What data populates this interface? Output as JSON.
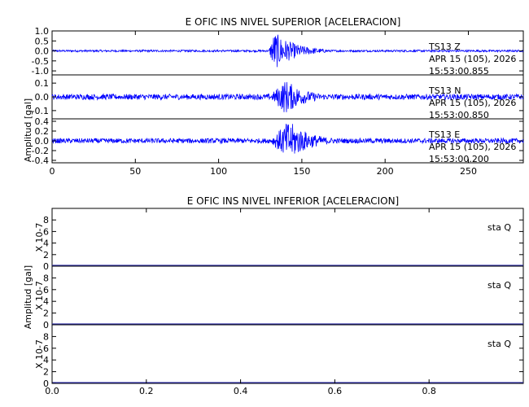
{
  "colors": {
    "trace": "#0000ff",
    "zero_trace": "#3333aa",
    "axis": "#000000",
    "background": "#ffffff"
  },
  "top": {
    "title": "E OFIC INS NIVEL SUPERIOR [ACELERACION]",
    "ylabel": "Amplitud [gal]",
    "x_ticks": [
      "0",
      "50",
      "100",
      "150",
      "200",
      "250"
    ],
    "panels": [
      {
        "channel": "TS13 Z",
        "date": "APR 15 (105), 2026",
        "time": "15:53:00.855",
        "y_ticks": [
          "1.0",
          "0.5",
          "0.0",
          "-0.5",
          "-1.0"
        ]
      },
      {
        "channel": "TS13 N",
        "date": "APR 15 (105), 2026",
        "time": "15:53:00.850",
        "y_ticks": [
          "0.1",
          "0.0",
          "-0.1"
        ]
      },
      {
        "channel": "TS13 E",
        "date": "APR 15 (105), 2026",
        "time": "15:53:00.200",
        "y_ticks": [
          "0.4",
          "0.2",
          "0.0",
          "-0.2",
          "-0.4"
        ]
      }
    ]
  },
  "bottom": {
    "title": "E OFIC INS NIVEL INFERIOR [ACELERACION]",
    "ylabel": "Amplitud [gal]",
    "scale_label": "X 10-7",
    "x_ticks": [
      "0.0",
      "0.2",
      "0.4",
      "0.6",
      "0.8"
    ],
    "panels": [
      {
        "station": "sta Q",
        "y_ticks": [
          "8",
          "6",
          "4",
          "2",
          "0"
        ]
      },
      {
        "station": "sta Q",
        "y_ticks": [
          "8",
          "6",
          "4",
          "2",
          "0"
        ]
      },
      {
        "station": "sta Q",
        "y_ticks": [
          "8",
          "6",
          "4",
          "2",
          "0"
        ]
      }
    ]
  },
  "chart_data": [
    {
      "type": "line",
      "title": "E OFIC INS NIVEL SUPERIOR [ACELERACION]",
      "xlabel": "",
      "ylabel": "Amplitud [gal]",
      "xlim": [
        0,
        283
      ],
      "x_ticks": [
        0,
        50,
        100,
        150,
        200,
        250
      ],
      "event_onset_x": 130,
      "series": [
        {
          "name": "TS13 Z",
          "ylim": [
            -1.2,
            1.0
          ],
          "y_ticks": [
            1.0,
            0.5,
            0.0,
            -0.5,
            -1.0
          ],
          "background_amplitude": 0.05,
          "peak_amplitude": 1.0,
          "peak_x": 133,
          "coda_end_x": 165
        },
        {
          "name": "TS13 N",
          "ylim": [
            -0.16,
            0.16
          ],
          "y_ticks": [
            0.1,
            0.0,
            -0.1
          ],
          "background_amplitude": 0.02,
          "peak_amplitude": 0.13,
          "peak_x": 140,
          "coda_end_x": 170
        },
        {
          "name": "TS13 E",
          "ylim": [
            -0.45,
            0.45
          ],
          "y_ticks": [
            0.4,
            0.2,
            0.0,
            -0.2,
            -0.4
          ],
          "background_amplitude": 0.05,
          "peak_amplitude": 0.42,
          "peak_x": 142,
          "coda_end_x": 175
        }
      ]
    },
    {
      "type": "line",
      "title": "E OFIC INS NIVEL INFERIOR [ACELERACION]",
      "xlabel": "",
      "ylabel": "Amplitud [gal]",
      "xlim": [
        0,
        1.0
      ],
      "x_ticks": [
        0.0,
        0.2,
        0.4,
        0.6,
        0.8
      ],
      "series": [
        {
          "name": "sta Q",
          "ylim": [
            0,
            10
          ],
          "y_ticks": [
            0,
            2,
            4,
            6,
            8
          ],
          "values": [
            0,
            0
          ]
        },
        {
          "name": "sta Q",
          "ylim": [
            0,
            10
          ],
          "y_ticks": [
            0,
            2,
            4,
            6,
            8
          ],
          "values": [
            0,
            0
          ]
        },
        {
          "name": "sta Q",
          "ylim": [
            0,
            10
          ],
          "y_ticks": [
            0,
            2,
            4,
            6,
            8
          ],
          "values": [
            0,
            0
          ]
        }
      ]
    }
  ]
}
